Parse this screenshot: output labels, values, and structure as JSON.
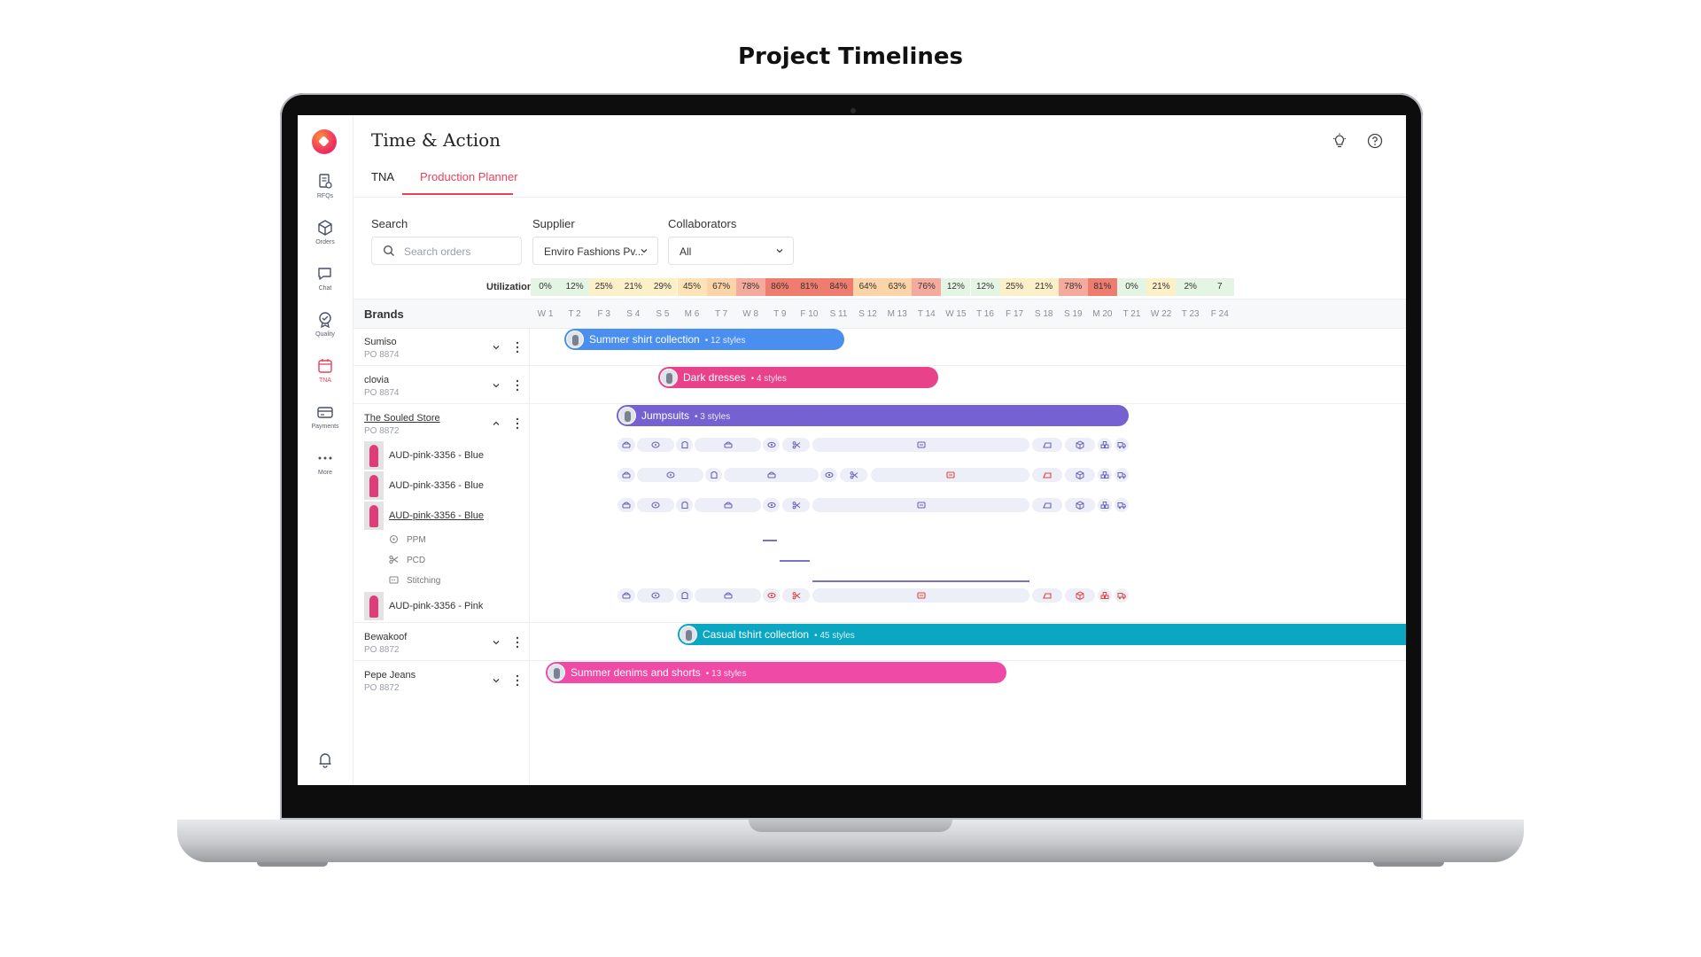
{
  "page_title": "Project Timelines",
  "app": {
    "title": "Time & Action",
    "nav": [
      {
        "label": "RFQs",
        "icon": "rfq-icon"
      },
      {
        "label": "Orders",
        "icon": "box-icon"
      },
      {
        "label": "Chat",
        "icon": "chat-icon"
      },
      {
        "label": "Quality",
        "icon": "quality-badge-icon"
      },
      {
        "label": "TNA",
        "icon": "calendar-icon",
        "active": true
      },
      {
        "label": "Payments",
        "icon": "card-icon"
      },
      {
        "label": "More",
        "icon": "more-dots-icon"
      }
    ],
    "tabs": [
      {
        "label": "TNA"
      },
      {
        "label": "Production Planner",
        "active": true
      }
    ],
    "filters": {
      "search_label": "Search",
      "search_placeholder": "Search orders",
      "supplier_label": "Supplier",
      "supplier_value": "Enviro Fashions Pv...",
      "collaborators_label": "Collaborators",
      "collaborators_value": "All"
    },
    "utilization_label": "Utilization",
    "utilization": [
      "0%",
      "12%",
      "25%",
      "21%",
      "29%",
      "45%",
      "67%",
      "78%",
      "86%",
      "81%",
      "84%",
      "64%",
      "63%",
      "76%",
      "12%",
      "12%",
      "25%",
      "21%",
      "78%",
      "81%",
      "0%",
      "21%",
      "2%",
      "7"
    ],
    "brands_label": "Brands",
    "weeks": [
      "W 1",
      "T 2",
      "F 3",
      "S 4",
      "S 5",
      "M 6",
      "T 7",
      "W 8",
      "T 9",
      "F 10",
      "S 11",
      "S 12",
      "M 13",
      "T 14",
      "W 15",
      "T 16",
      "F 17",
      "S 18",
      "S 19",
      "M 20",
      "T 21",
      "W 22",
      "T 23",
      "F 24"
    ],
    "rows": [
      {
        "brand": "Sumiso",
        "po": "PO 8874",
        "bar_title": "Summer shirt collection",
        "bar_sub": "• 12 styles",
        "color": "#4a8ff0"
      },
      {
        "brand": "clovia",
        "po": "PO 8874",
        "bar_title": "Dark dresses",
        "bar_sub": "• 4 styles",
        "color": "#e8428a"
      },
      {
        "brand": "The Souled Store",
        "po": "PO 8872",
        "bar_title": "Jumpsuits",
        "bar_sub": "• 3 styles",
        "color": "#7561d1"
      },
      {
        "brand": "Bewakoof",
        "po": "PO 8872",
        "bar_title": "Casual tshirt collection",
        "bar_sub": "• 45 styles",
        "color": "#0aa6c2"
      },
      {
        "brand": "Pepe Jeans",
        "po": "PO 8872",
        "bar_title": "Summer denims and shorts",
        "bar_sub": "• 13 styles",
        "color": "#ef4aa6"
      }
    ],
    "styles": [
      {
        "name": "AUD-pink-3356 - Blue"
      },
      {
        "name": "AUD-pink-3356 - Blue"
      },
      {
        "name": "AUD-pink-3356 - Blue"
      },
      {
        "name": "AUD-pink-3356 - Pink"
      }
    ],
    "sub_tasks": [
      {
        "name": "PPM",
        "icon": "ppm-icon"
      },
      {
        "name": "PCD",
        "icon": "scissors-icon"
      },
      {
        "name": "Stitching",
        "icon": "stitching-icon"
      }
    ],
    "colors": {
      "accent": "#e8425a",
      "task_icon": "#6a63b8",
      "task_alert": "#e0453a"
    }
  }
}
